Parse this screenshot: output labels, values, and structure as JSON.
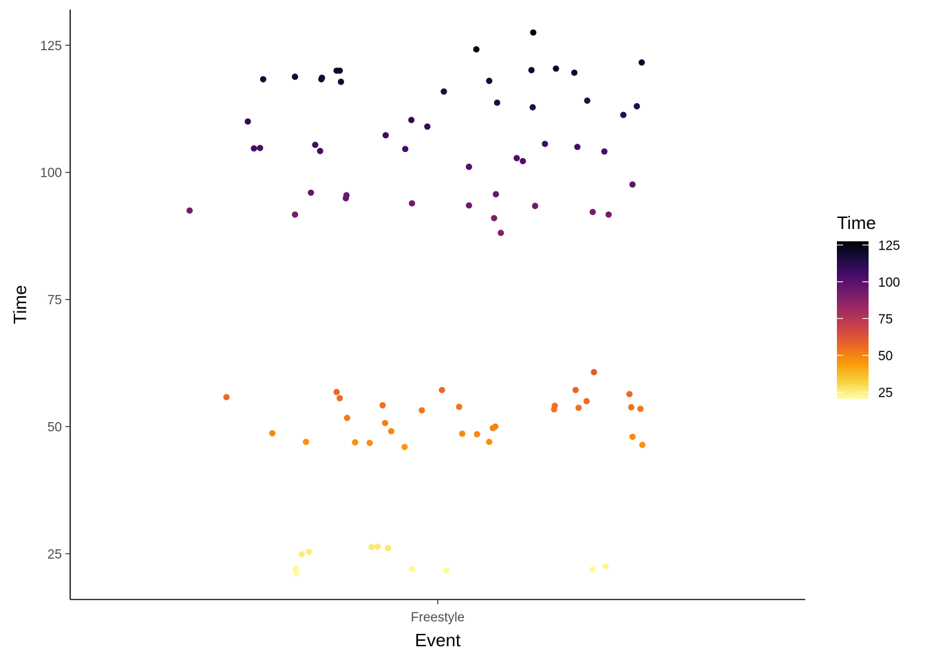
{
  "chart_data": {
    "type": "scatter",
    "xlabel": "Event",
    "ylabel": "Time",
    "categories": [
      "Freestyle"
    ],
    "ylim": [
      16,
      132
    ],
    "yticks": [
      25,
      50,
      75,
      100,
      125
    ],
    "grid": false,
    "legend": {
      "title": "Time",
      "placement": "right",
      "type": "continuous colorbar",
      "palette": "inferno",
      "range": [
        20.5,
        127.5
      ],
      "ticks": [
        25,
        50,
        75,
        100,
        125
      ],
      "colors": [
        "#FCFFA4",
        "#F7D13D",
        "#FB9B06",
        "#ED6925",
        "#CF4446",
        "#A52C60",
        "#781C6D",
        "#4A0C6B",
        "#1B0C41",
        "#000004"
      ]
    },
    "points": [
      {
        "x": -0.405,
        "y": 92.5
      },
      {
        "x": -0.345,
        "y": 55.8
      },
      {
        "x": -0.31,
        "y": 110.0
      },
      {
        "x": -0.3,
        "y": 104.7
      },
      {
        "x": -0.29,
        "y": 104.8
      },
      {
        "x": -0.285,
        "y": 118.3
      },
      {
        "x": -0.27,
        "y": 48.7
      },
      {
        "x": -0.233,
        "y": 118.8
      },
      {
        "x": -0.233,
        "y": 91.7
      },
      {
        "x": -0.232,
        "y": 22.0
      },
      {
        "x": -0.23,
        "y": 21.2
      },
      {
        "x": -0.222,
        "y": 24.9
      },
      {
        "x": -0.215,
        "y": 47.0
      },
      {
        "x": -0.21,
        "y": 25.4
      },
      {
        "x": -0.207,
        "y": 96.0
      },
      {
        "x": -0.2,
        "y": 105.4
      },
      {
        "x": -0.192,
        "y": 104.2
      },
      {
        "x": -0.19,
        "y": 118.3
      },
      {
        "x": -0.189,
        "y": 118.6
      },
      {
        "x": -0.165,
        "y": 56.8
      },
      {
        "x": -0.165,
        "y": 120.0
      },
      {
        "x": -0.16,
        "y": 120.0
      },
      {
        "x": -0.16,
        "y": 55.6
      },
      {
        "x": -0.158,
        "y": 117.8
      },
      {
        "x": -0.15,
        "y": 94.9
      },
      {
        "x": -0.149,
        "y": 95.5
      },
      {
        "x": -0.148,
        "y": 51.7
      },
      {
        "x": -0.135,
        "y": 46.9
      },
      {
        "x": -0.111,
        "y": 46.8
      },
      {
        "x": -0.108,
        "y": 26.3
      },
      {
        "x": -0.098,
        "y": 26.4
      },
      {
        "x": -0.09,
        "y": 54.2
      },
      {
        "x": -0.085,
        "y": 107.3
      },
      {
        "x": -0.086,
        "y": 50.7
      },
      {
        "x": -0.081,
        "y": 26.1
      },
      {
        "x": -0.076,
        "y": 49.1
      },
      {
        "x": -0.054,
        "y": 46.0
      },
      {
        "x": -0.053,
        "y": 104.6
      },
      {
        "x": -0.043,
        "y": 110.3
      },
      {
        "x": -0.042,
        "y": 93.9
      },
      {
        "x": -0.042,
        "y": 22.0
      },
      {
        "x": -0.026,
        "y": 53.2
      },
      {
        "x": -0.017,
        "y": 109.0
      },
      {
        "x": 0.007,
        "y": 57.2
      },
      {
        "x": 0.01,
        "y": 115.9
      },
      {
        "x": 0.014,
        "y": 21.7
      },
      {
        "x": 0.035,
        "y": 53.9
      },
      {
        "x": 0.04,
        "y": 48.6
      },
      {
        "x": 0.051,
        "y": 101.1
      },
      {
        "x": 0.051,
        "y": 93.5
      },
      {
        "x": 0.063,
        "y": 124.2
      },
      {
        "x": 0.064,
        "y": 48.5
      },
      {
        "x": 0.084,
        "y": 47.0
      },
      {
        "x": 0.084,
        "y": 118.0
      },
      {
        "x": 0.09,
        "y": 49.7
      },
      {
        "x": 0.092,
        "y": 91.0
      },
      {
        "x": 0.095,
        "y": 95.7
      },
      {
        "x": 0.094,
        "y": 50.0
      },
      {
        "x": 0.097,
        "y": 113.7
      },
      {
        "x": 0.103,
        "y": 88.1
      },
      {
        "x": 0.129,
        "y": 102.8
      },
      {
        "x": 0.139,
        "y": 102.2
      },
      {
        "x": 0.153,
        "y": 120.1
      },
      {
        "x": 0.155,
        "y": 112.8
      },
      {
        "x": 0.156,
        "y": 127.5
      },
      {
        "x": 0.159,
        "y": 93.4
      },
      {
        "x": 0.175,
        "y": 105.6
      },
      {
        "x": 0.19,
        "y": 53.4
      },
      {
        "x": 0.191,
        "y": 54.1
      },
      {
        "x": 0.193,
        "y": 120.4
      },
      {
        "x": 0.223,
        "y": 119.6
      },
      {
        "x": 0.225,
        "y": 57.2
      },
      {
        "x": 0.228,
        "y": 105.0
      },
      {
        "x": 0.23,
        "y": 53.7
      },
      {
        "x": 0.243,
        "y": 55.0
      },
      {
        "x": 0.244,
        "y": 114.1
      },
      {
        "x": 0.253,
        "y": 92.2
      },
      {
        "x": 0.255,
        "y": 60.7
      },
      {
        "x": 0.253,
        "y": 21.9
      },
      {
        "x": 0.272,
        "y": 104.1
      },
      {
        "x": 0.274,
        "y": 22.5
      },
      {
        "x": 0.279,
        "y": 91.7
      },
      {
        "x": 0.303,
        "y": 111.3
      },
      {
        "x": 0.313,
        "y": 56.4
      },
      {
        "x": 0.316,
        "y": 53.8
      },
      {
        "x": 0.318,
        "y": 97.6
      },
      {
        "x": 0.318,
        "y": 48.0
      },
      {
        "x": 0.325,
        "y": 113.0
      },
      {
        "x": 0.331,
        "y": 53.5
      },
      {
        "x": 0.333,
        "y": 121.6
      },
      {
        "x": 0.334,
        "y": 46.4
      }
    ]
  }
}
